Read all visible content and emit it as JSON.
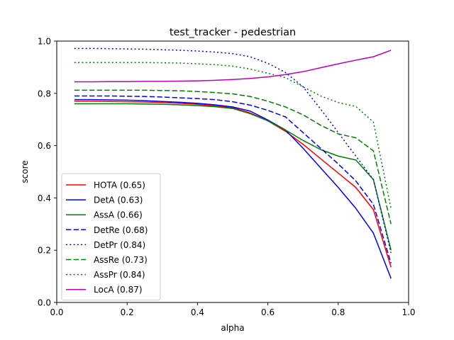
{
  "chart_data": {
    "type": "line",
    "title": "test_tracker - pedestrian",
    "xlabel": "alpha",
    "ylabel": "score",
    "xlim": [
      0.0,
      1.0
    ],
    "ylim": [
      0.0,
      1.0
    ],
    "xticks": [
      "0.0",
      "0.2",
      "0.4",
      "0.6",
      "0.8",
      "1.0"
    ],
    "yticks": [
      "0.0",
      "0.2",
      "0.4",
      "0.6",
      "0.8",
      "1.0"
    ],
    "grid": false,
    "legend_position": "lower-left",
    "x": [
      0.05,
      0.1,
      0.15,
      0.2,
      0.25,
      0.3,
      0.35,
      0.4,
      0.45,
      0.5,
      0.55,
      0.6,
      0.65,
      0.7,
      0.75,
      0.8,
      0.85,
      0.9,
      0.95
    ],
    "series": [
      {
        "name": "HOTA (0.65)",
        "color": "#ff0000",
        "style": "solid",
        "values": [
          0.77,
          0.77,
          0.769,
          0.768,
          0.767,
          0.765,
          0.762,
          0.758,
          0.752,
          0.745,
          0.725,
          0.695,
          0.655,
          0.605,
          0.55,
          0.495,
          0.44,
          0.355,
          0.135
        ]
      },
      {
        "name": "DetA (0.63)",
        "color": "#0000ff",
        "style": "solid",
        "values": [
          0.776,
          0.776,
          0.775,
          0.774,
          0.772,
          0.769,
          0.766,
          0.762,
          0.756,
          0.748,
          0.732,
          0.698,
          0.66,
          0.59,
          0.515,
          0.44,
          0.36,
          0.265,
          0.092
        ]
      },
      {
        "name": "AssA (0.66)",
        "color": "#008000",
        "style": "solid",
        "values": [
          0.76,
          0.76,
          0.76,
          0.76,
          0.759,
          0.758,
          0.756,
          0.753,
          0.749,
          0.742,
          0.722,
          0.695,
          0.66,
          0.62,
          0.585,
          0.56,
          0.545,
          0.47,
          0.2
        ]
      },
      {
        "name": "DetRe (0.68)",
        "color": "#0000ff",
        "style": "dashed",
        "values": [
          0.79,
          0.79,
          0.79,
          0.789,
          0.788,
          0.786,
          0.783,
          0.78,
          0.776,
          0.768,
          0.755,
          0.735,
          0.71,
          0.65,
          0.59,
          0.53,
          0.465,
          0.375,
          0.15
        ]
      },
      {
        "name": "DetPr (0.84)",
        "color": "#0000ff",
        "style": "dotted",
        "values": [
          0.972,
          0.972,
          0.971,
          0.97,
          0.969,
          0.967,
          0.965,
          0.962,
          0.958,
          0.952,
          0.94,
          0.915,
          0.88,
          0.825,
          0.74,
          0.65,
          0.56,
          0.47,
          0.19
        ]
      },
      {
        "name": "AssRe (0.73)",
        "color": "#008000",
        "style": "dashed",
        "values": [
          0.812,
          0.812,
          0.812,
          0.812,
          0.812,
          0.811,
          0.81,
          0.807,
          0.803,
          0.798,
          0.788,
          0.77,
          0.748,
          0.718,
          0.678,
          0.645,
          0.63,
          0.58,
          0.3
        ]
      },
      {
        "name": "AssPr (0.84)",
        "color": "#008000",
        "style": "dotted",
        "values": [
          0.918,
          0.918,
          0.918,
          0.918,
          0.918,
          0.917,
          0.916,
          0.913,
          0.91,
          0.904,
          0.893,
          0.877,
          0.86,
          0.825,
          0.79,
          0.765,
          0.75,
          0.69,
          0.36
        ]
      },
      {
        "name": "LocA (0.87)",
        "color": "#bf00bf",
        "style": "solid",
        "values": [
          0.844,
          0.844,
          0.845,
          0.845,
          0.846,
          0.846,
          0.847,
          0.848,
          0.85,
          0.853,
          0.857,
          0.863,
          0.872,
          0.883,
          0.898,
          0.913,
          0.927,
          0.94,
          0.965
        ]
      }
    ]
  }
}
